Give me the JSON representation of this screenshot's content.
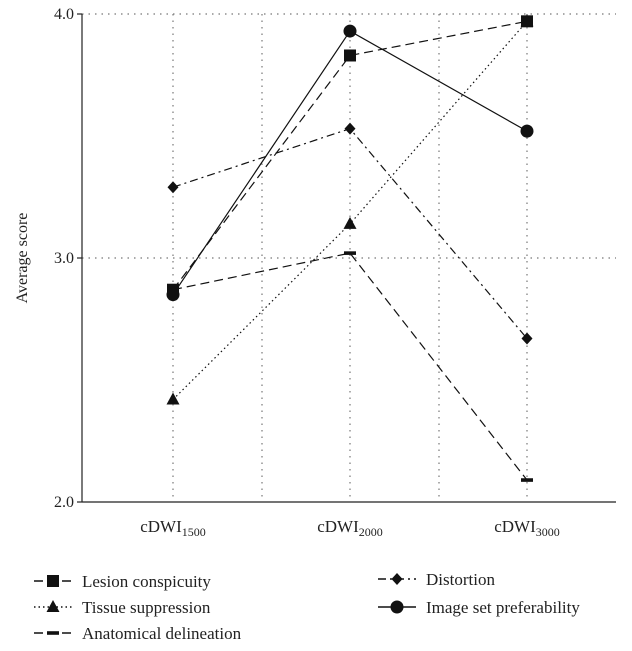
{
  "chart_data": {
    "type": "line",
    "title": "",
    "xlabel": "",
    "ylabel": "Average score",
    "ylim": [
      2.0,
      4.0
    ],
    "yticks": [
      {
        "value": 2.0,
        "label": "2.0"
      },
      {
        "value": 3.0,
        "label": "3.0"
      },
      {
        "value": 4.0,
        "label": "4.0"
      }
    ],
    "grid": true,
    "legend_position": "bottom",
    "categories": [
      {
        "base": "cDWI",
        "sub": "1500"
      },
      {
        "base": "cDWI",
        "sub": "2000"
      },
      {
        "base": "cDWI",
        "sub": "3000"
      }
    ],
    "series": [
      {
        "name": "Lesion conspicuity",
        "marker": "square",
        "line": "dashed",
        "values": [
          2.87,
          3.83,
          3.97
        ]
      },
      {
        "name": "Tissue suppression",
        "marker": "triangle",
        "line": "dotted",
        "values": [
          2.42,
          3.14,
          3.97
        ]
      },
      {
        "name": "Anatomical delineation",
        "marker": "dash",
        "line": "dashed",
        "values": [
          2.87,
          3.02,
          2.09
        ]
      },
      {
        "name": "Distortion",
        "marker": "diamond",
        "line": "dashdot",
        "values": [
          3.29,
          3.53,
          2.67
        ]
      },
      {
        "name": "Image set preferability",
        "marker": "circle",
        "line": "solid",
        "values": [
          2.85,
          3.93,
          3.52
        ]
      }
    ]
  }
}
